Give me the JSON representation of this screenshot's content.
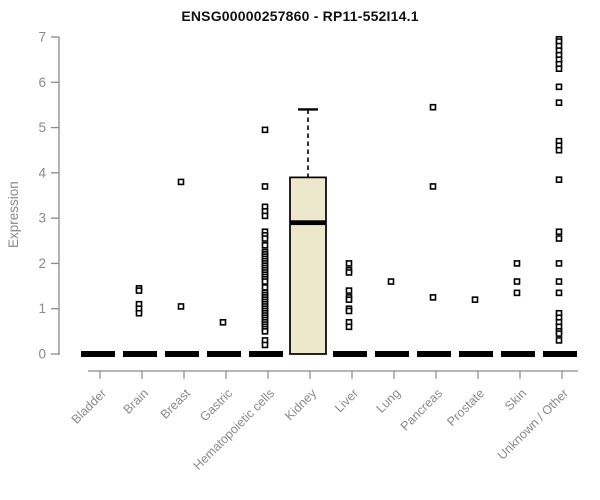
{
  "title": "ENSG00000257860 - RP11-552I14.1",
  "colors": {
    "box_fill": "#ede7cc",
    "box_border": "#000000",
    "median": "#000000",
    "point": "#000000",
    "point_fill": "#ffffff",
    "axis": "#8a8a8a",
    "tick_label": "#8a8a8a",
    "title": "#111111"
  },
  "chart_data": {
    "type": "boxplot",
    "title": "ENSG00000257860 - RP11-552I14.1",
    "xlabel": "",
    "ylabel": "Expression",
    "ylim": [
      0,
      7
    ],
    "yticks": [
      0,
      1,
      2,
      3,
      4,
      5,
      6,
      7
    ],
    "grid": false,
    "legend": false,
    "categories": [
      "Bladder",
      "Brain",
      "Breast",
      "Gastric",
      "Hematopoietic cells",
      "Kidney",
      "Liver",
      "Lung",
      "Pancreas",
      "Prostate",
      "Skin",
      "Unknown / Other"
    ],
    "groups": [
      {
        "name": "Bladder",
        "box": {
          "q1": 0,
          "median": 0,
          "q3": 0,
          "whisker_low": 0,
          "whisker_high": 0
        },
        "points": []
      },
      {
        "name": "Brain",
        "box": {
          "q1": 0,
          "median": 0,
          "q3": 0,
          "whisker_low": 0,
          "whisker_high": 0
        },
        "points": [
          1.45,
          1.4,
          1.1,
          1.0,
          0.9
        ]
      },
      {
        "name": "Breast",
        "box": {
          "q1": 0,
          "median": 0,
          "q3": 0,
          "whisker_low": 0,
          "whisker_high": 0
        },
        "points": [
          3.8,
          1.05
        ]
      },
      {
        "name": "Gastric",
        "box": {
          "q1": 0,
          "median": 0,
          "q3": 0,
          "whisker_low": 0,
          "whisker_high": 0
        },
        "points": [
          0.7
        ]
      },
      {
        "name": "Hematopoietic cells",
        "box": {
          "q1": 0,
          "median": 0,
          "q3": 0,
          "whisker_low": 0,
          "whisker_high": 0
        },
        "points": [
          4.95,
          3.7,
          3.25,
          3.15,
          3.05,
          2.7,
          2.62,
          2.55,
          2.4,
          2.25,
          2.2,
          2.15,
          2.1,
          2.05,
          2.0,
          1.95,
          1.9,
          1.85,
          1.8,
          1.75,
          1.7,
          1.65,
          1.6,
          1.47,
          1.35,
          1.3,
          1.25,
          1.2,
          1.15,
          1.1,
          1.05,
          1.0,
          0.95,
          0.9,
          0.85,
          0.8,
          0.75,
          0.7,
          0.65,
          0.6,
          0.55,
          0.5,
          0.3,
          0.2
        ]
      },
      {
        "name": "Kidney",
        "box": {
          "q1": 0,
          "median": 2.9,
          "q3": 3.9,
          "whisker_low": 0,
          "whisker_high": 5.4
        },
        "points": []
      },
      {
        "name": "Liver",
        "box": {
          "q1": 0,
          "median": 0,
          "q3": 0,
          "whisker_low": 0,
          "whisker_high": 0
        },
        "points": [
          2.0,
          1.85,
          1.8,
          1.4,
          1.25,
          1.2,
          1.0,
          0.95,
          0.7,
          0.6
        ]
      },
      {
        "name": "Lung",
        "box": {
          "q1": 0,
          "median": 0,
          "q3": 0,
          "whisker_low": 0,
          "whisker_high": 0
        },
        "points": [
          1.6
        ]
      },
      {
        "name": "Pancreas",
        "box": {
          "q1": 0,
          "median": 0,
          "q3": 0,
          "whisker_low": 0,
          "whisker_high": 0
        },
        "points": [
          5.45,
          3.7,
          1.25
        ]
      },
      {
        "name": "Prostate",
        "box": {
          "q1": 0,
          "median": 0,
          "q3": 0,
          "whisker_low": 0,
          "whisker_high": 0
        },
        "points": [
          1.2
        ]
      },
      {
        "name": "Skin",
        "box": {
          "q1": 0,
          "median": 0,
          "q3": 0,
          "whisker_low": 0,
          "whisker_high": 0
        },
        "points": [
          2.0,
          1.6,
          1.35
        ]
      },
      {
        "name": "Unknown / Other",
        "box": {
          "q1": 0,
          "median": 0,
          "q3": 0,
          "whisker_low": 0,
          "whisker_high": 0
        },
        "points": [
          6.95,
          6.9,
          6.8,
          6.7,
          6.6,
          6.5,
          6.4,
          6.3,
          5.9,
          5.55,
          4.7,
          4.6,
          4.5,
          3.85,
          2.7,
          2.55,
          2.0,
          1.6,
          1.35,
          0.9,
          0.8,
          0.7,
          0.6,
          0.5,
          0.45,
          0.3
        ]
      }
    ]
  }
}
